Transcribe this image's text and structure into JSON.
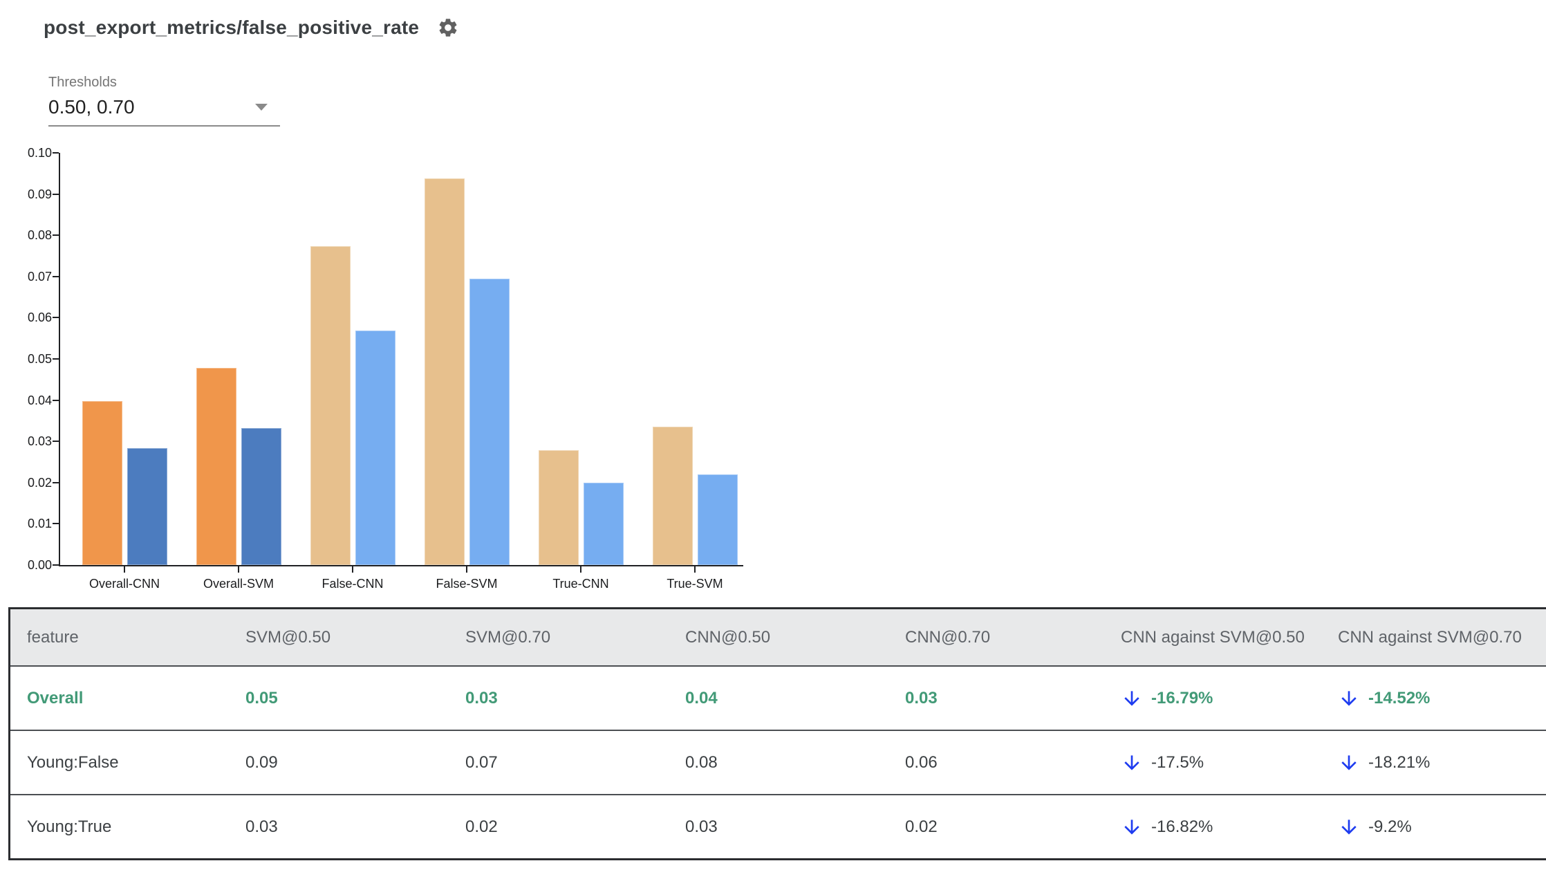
{
  "header": {
    "title": "post_export_metrics/false_positive_rate",
    "gear_icon": "settings-gear"
  },
  "thresholds": {
    "label": "Thresholds",
    "value": "0.50, 0.70"
  },
  "chart_data": {
    "type": "bar",
    "title": "",
    "xlabel": "",
    "ylabel": "",
    "categories": [
      "Overall-CNN",
      "Overall-SVM",
      "False-CNN",
      "False-SVM",
      "True-CNN",
      "True-SVM"
    ],
    "series": [
      {
        "name": "threshold 0.50",
        "values": [
          0.0398,
          0.0478,
          0.0774,
          0.0938,
          0.0279,
          0.0336
        ]
      },
      {
        "name": "threshold 0.70",
        "values": [
          0.0283,
          0.0332,
          0.0568,
          0.0695,
          0.02,
          0.022
        ]
      }
    ],
    "ylim": [
      0,
      0.1
    ],
    "ytick_step": 0.01,
    "grid": false,
    "legend": "none",
    "overall_group_count": 2,
    "colors": {
      "overall_t50": "#F0964B",
      "overall_t70": "#4C7CBF",
      "slice_t50": "#E7C08D",
      "slice_t70": "#76ADF1"
    }
  },
  "table": {
    "columns": [
      "feature",
      "SVM@0.50",
      "SVM@0.70",
      "CNN@0.50",
      "CNN@0.70",
      "CNN against SVM@0.50",
      "CNN against SVM@0.70"
    ],
    "rows": [
      {
        "feature": "Overall",
        "values": [
          "0.05",
          "0.03",
          "0.04",
          "0.03"
        ],
        "deltas": [
          "-16.79%",
          "-14.52%"
        ],
        "highlight": true
      },
      {
        "feature": "Young:False",
        "values": [
          "0.09",
          "0.07",
          "0.08",
          "0.06"
        ],
        "deltas": [
          "-17.5%",
          "-18.21%"
        ],
        "highlight": false
      },
      {
        "feature": "Young:True",
        "values": [
          "0.03",
          "0.02",
          "0.03",
          "0.02"
        ],
        "deltas": [
          "-16.82%",
          "-9.2%"
        ],
        "highlight": false
      }
    ],
    "delta_icon": "arrow-down",
    "colors": {
      "highlight": "#429a77",
      "arrow": "#1e3cf0"
    }
  }
}
